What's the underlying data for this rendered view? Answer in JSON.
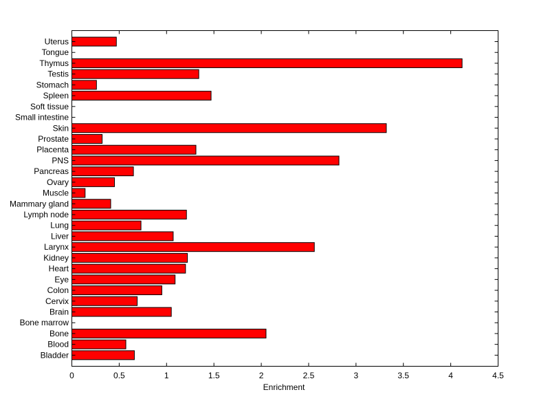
{
  "chart_data": {
    "type": "bar",
    "orientation": "horizontal",
    "categories": [
      "Uterus",
      "Tongue",
      "Thymus",
      "Testis",
      "Stomach",
      "Spleen",
      "Soft tissue",
      "Small intestine",
      "Skin",
      "Prostate",
      "Placenta",
      "PNS",
      "Pancreas",
      "Ovary",
      "Muscle",
      "Mammary gland",
      "Lymph node",
      "Lung",
      "Liver",
      "Larynx",
      "Kidney",
      "Heart",
      "Eye",
      "Colon",
      "Cervix",
      "Brain",
      "Bone marrow",
      "Bone",
      "Blood",
      "Bladder"
    ],
    "values": [
      0.47,
      0,
      4.12,
      1.34,
      0.26,
      1.47,
      0,
      0,
      3.32,
      0.32,
      1.31,
      2.82,
      0.65,
      0.45,
      0.14,
      0.41,
      1.21,
      0.73,
      1.07,
      2.56,
      1.22,
      1.2,
      1.09,
      0.95,
      0.69,
      1.05,
      0,
      2.05,
      0.57,
      0.66
    ],
    "title": "",
    "xlabel": "Enrichment",
    "ylabel": "",
    "xlim": [
      0,
      4.5
    ],
    "xticks": [
      "0",
      "0.5",
      "1",
      "1.5",
      "2",
      "2.5",
      "3",
      "3.5",
      "4",
      "4.5"
    ],
    "bar_color": "#ff0000",
    "edge_color": "#000000",
    "grid": false,
    "legend": "none"
  }
}
